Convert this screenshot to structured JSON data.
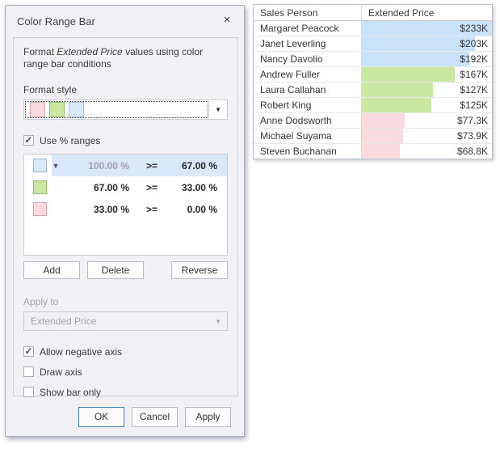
{
  "dialog": {
    "title": "Color Range Bar",
    "close_icon": "×",
    "description": {
      "prefix": "Format ",
      "emphasis": "Extended Price",
      "suffix": " values using color range bar conditions"
    },
    "format_style_label": "Format style",
    "format_style_swatches": [
      {
        "name": "pink",
        "fill": "#FBD9DD",
        "border": "#CFA6AC"
      },
      {
        "name": "green",
        "fill": "#C9E7A0",
        "border": "#92BB70"
      },
      {
        "name": "blue",
        "fill": "#D8E9FA",
        "border": "#A2B8CF"
      }
    ],
    "use_ranges": {
      "label": "Use % ranges",
      "checked": true
    },
    "ranges": [
      {
        "swatch_fill": "#D8E9FA",
        "swatch_border": "#A2B8CF",
        "from": "100.00 %",
        "op": ">=",
        "to": "67.00 %",
        "selected": true,
        "from_muted": true,
        "has_caret": true
      },
      {
        "swatch_fill": "#C9E7A0",
        "swatch_border": "#92BB70",
        "from": "67.00 %",
        "op": ">=",
        "to": "33.00 %",
        "selected": false,
        "from_muted": false,
        "has_caret": false
      },
      {
        "swatch_fill": "#FBD9DD",
        "swatch_border": "#CFA6AC",
        "from": "33.00 %",
        "op": ">=",
        "to": "0.00 %",
        "selected": false,
        "from_muted": false,
        "has_caret": false
      }
    ],
    "list_buttons": {
      "add": "Add",
      "delete": "Delete",
      "reverse": "Reverse"
    },
    "apply_to": {
      "label": "Apply to",
      "value": "Extended Price"
    },
    "options": [
      {
        "label": "Allow negative axis",
        "checked": true
      },
      {
        "label": "Draw axis",
        "checked": false
      },
      {
        "label": "Show bar only",
        "checked": false
      }
    ],
    "footer_buttons": {
      "ok": "OK",
      "cancel": "Cancel",
      "apply": "Apply"
    },
    "colors": {
      "selection": "#D9E8F8",
      "ok_border": "#3E7FC1"
    }
  },
  "grid": {
    "columns": [
      "Sales Person",
      "Extended Price"
    ],
    "bar_colors": {
      "high": "#C9E2F7",
      "mid": "#CBE8A2",
      "low": "#FADADE"
    },
    "rows": [
      {
        "name": "Margaret Peacock",
        "value": "$233K",
        "bar_color": "#C9E2F7",
        "bar_pct": 100
      },
      {
        "name": "Janet Leverling",
        "value": "$203K",
        "bar_color": "#C9E2F7",
        "bar_pct": 87.1
      },
      {
        "name": "Nancy Davolio",
        "value": "$192K",
        "bar_color": "#C9E2F7",
        "bar_pct": 82.4
      },
      {
        "name": "Andrew Fuller",
        "value": "$167K",
        "bar_color": "#CBE8A2",
        "bar_pct": 71.7
      },
      {
        "name": "Laura Callahan",
        "value": "$127K",
        "bar_color": "#CBE8A2",
        "bar_pct": 54.5
      },
      {
        "name": "Robert King",
        "value": "$125K",
        "bar_color": "#CBE8A2",
        "bar_pct": 53.6
      },
      {
        "name": "Anne Dodsworth",
        "value": "$77.3K",
        "bar_color": "#FADADE",
        "bar_pct": 33.2
      },
      {
        "name": "Michael Suyama",
        "value": "$73.9K",
        "bar_color": "#FADADE",
        "bar_pct": 31.7
      },
      {
        "name": "Steven Buchanan",
        "value": "$68.8K",
        "bar_color": "#FADADE",
        "bar_pct": 29.5
      }
    ]
  }
}
